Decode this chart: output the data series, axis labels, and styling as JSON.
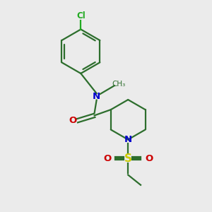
{
  "background_color": "#ebebeb",
  "bond_color": "#2d6e2d",
  "n_color": "#0000cc",
  "o_color": "#cc0000",
  "s_color": "#cccc00",
  "cl_color": "#22aa22",
  "line_width": 1.6,
  "fig_size": [
    3.0,
    3.0
  ],
  "dpi": 100,
  "xlim": [
    0,
    10
  ],
  "ylim": [
    0,
    10
  ]
}
